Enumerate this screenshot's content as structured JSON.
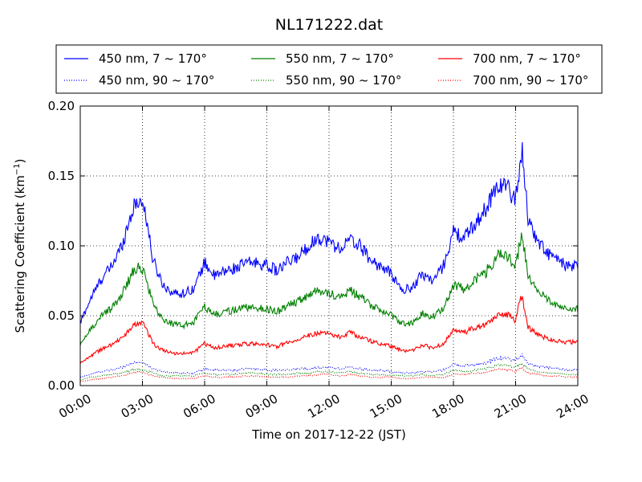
{
  "chart_data": {
    "type": "line",
    "title": "NL171222.dat",
    "xlabel": "Time on 2017-12-22 (JST)",
    "ylabel_main": "Scattering Coefficient (km",
    "ylabel_sup": "−1",
    "ylabel_end": ")",
    "xlim": [
      0,
      24
    ],
    "ylim": [
      0,
      0.2
    ],
    "x_ticks": [
      0,
      3,
      6,
      9,
      12,
      15,
      18,
      21,
      24
    ],
    "x_tick_labels": [
      "00:00",
      "03:00",
      "06:00",
      "09:00",
      "12:00",
      "15:00",
      "18:00",
      "21:00",
      "24:00"
    ],
    "y_ticks": [
      0,
      0.05,
      0.1,
      0.15,
      0.2
    ],
    "y_tick_labels": [
      "0.00",
      "0.05",
      "0.10",
      "0.15",
      "0.20"
    ],
    "grid": true,
    "legend_position": "top",
    "anchors_x": [
      0,
      0.5,
      1,
      1.5,
      2,
      2.5,
      2.8,
      3.1,
      3.5,
      4,
      4.5,
      5,
      5.5,
      6,
      6.5,
      7,
      7.5,
      8,
      8.5,
      9,
      9.5,
      10,
      10.5,
      11,
      11.5,
      12,
      12.5,
      13,
      13.5,
      14,
      14.5,
      15,
      15.5,
      16,
      16.5,
      17,
      17.5,
      18,
      18.5,
      19,
      19.5,
      20,
      20.3,
      20.7,
      21,
      21.3,
      21.6,
      22,
      22.5,
      23,
      23.5,
      24
    ],
    "series": [
      {
        "name": "450 nm, 7 ~ 170°",
        "color": "#0000ff",
        "style": "solid",
        "values": [
          0.045,
          0.062,
          0.076,
          0.085,
          0.1,
          0.125,
          0.133,
          0.128,
          0.09,
          0.072,
          0.066,
          0.066,
          0.07,
          0.088,
          0.078,
          0.082,
          0.084,
          0.088,
          0.088,
          0.086,
          0.082,
          0.088,
          0.092,
          0.1,
          0.106,
          0.103,
          0.098,
          0.104,
          0.1,
          0.09,
          0.085,
          0.08,
          0.068,
          0.07,
          0.08,
          0.075,
          0.085,
          0.11,
          0.105,
          0.115,
          0.125,
          0.14,
          0.145,
          0.14,
          0.132,
          0.17,
          0.12,
          0.105,
          0.095,
          0.09,
          0.085,
          0.085
        ]
      },
      {
        "name": "450 nm, 90 ~ 170°",
        "color": "#0000ff",
        "style": "dotted",
        "values": [
          0.006,
          0.008,
          0.01,
          0.011,
          0.013,
          0.016,
          0.017,
          0.016,
          0.012,
          0.01,
          0.009,
          0.009,
          0.009,
          0.012,
          0.011,
          0.011,
          0.011,
          0.012,
          0.012,
          0.011,
          0.011,
          0.011,
          0.012,
          0.012,
          0.013,
          0.013,
          0.012,
          0.013,
          0.012,
          0.011,
          0.011,
          0.01,
          0.009,
          0.009,
          0.01,
          0.01,
          0.011,
          0.015,
          0.014,
          0.015,
          0.016,
          0.019,
          0.02,
          0.019,
          0.018,
          0.022,
          0.016,
          0.014,
          0.013,
          0.012,
          0.011,
          0.011
        ]
      },
      {
        "name": "550 nm, 7 ~ 170°",
        "color": "#008000",
        "style": "solid",
        "values": [
          0.03,
          0.04,
          0.05,
          0.055,
          0.065,
          0.08,
          0.085,
          0.082,
          0.058,
          0.047,
          0.044,
          0.043,
          0.046,
          0.056,
          0.051,
          0.053,
          0.054,
          0.056,
          0.056,
          0.055,
          0.053,
          0.057,
          0.06,
          0.065,
          0.068,
          0.066,
          0.063,
          0.068,
          0.064,
          0.058,
          0.054,
          0.05,
          0.044,
          0.045,
          0.052,
          0.049,
          0.055,
          0.072,
          0.069,
          0.075,
          0.08,
          0.09,
          0.095,
          0.09,
          0.085,
          0.11,
          0.078,
          0.068,
          0.062,
          0.058,
          0.055,
          0.055
        ]
      },
      {
        "name": "550 nm, 90 ~ 170°",
        "color": "#008000",
        "style": "dotted",
        "values": [
          0.004,
          0.006,
          0.007,
          0.008,
          0.009,
          0.011,
          0.012,
          0.011,
          0.009,
          0.007,
          0.007,
          0.007,
          0.007,
          0.009,
          0.008,
          0.008,
          0.008,
          0.009,
          0.009,
          0.008,
          0.008,
          0.008,
          0.009,
          0.009,
          0.01,
          0.01,
          0.009,
          0.01,
          0.009,
          0.008,
          0.008,
          0.007,
          0.007,
          0.007,
          0.008,
          0.007,
          0.008,
          0.011,
          0.01,
          0.011,
          0.012,
          0.014,
          0.015,
          0.014,
          0.013,
          0.016,
          0.012,
          0.01,
          0.009,
          0.009,
          0.008,
          0.008
        ]
      },
      {
        "name": "700 nm, 7 ~ 170°",
        "color": "#ff0000",
        "style": "solid",
        "values": [
          0.016,
          0.021,
          0.026,
          0.029,
          0.034,
          0.042,
          0.045,
          0.043,
          0.03,
          0.025,
          0.023,
          0.023,
          0.024,
          0.03,
          0.027,
          0.028,
          0.029,
          0.03,
          0.03,
          0.029,
          0.028,
          0.031,
          0.033,
          0.036,
          0.038,
          0.037,
          0.035,
          0.038,
          0.035,
          0.032,
          0.03,
          0.028,
          0.025,
          0.025,
          0.029,
          0.027,
          0.03,
          0.039,
          0.038,
          0.041,
          0.043,
          0.048,
          0.052,
          0.05,
          0.047,
          0.065,
          0.042,
          0.037,
          0.034,
          0.032,
          0.031,
          0.031
        ]
      },
      {
        "name": "700 nm, 90 ~ 170°",
        "color": "#ff0000",
        "style": "dotted",
        "values": [
          0.003,
          0.004,
          0.005,
          0.006,
          0.007,
          0.009,
          0.01,
          0.009,
          0.007,
          0.006,
          0.005,
          0.005,
          0.005,
          0.007,
          0.006,
          0.006,
          0.006,
          0.007,
          0.007,
          0.006,
          0.006,
          0.006,
          0.007,
          0.007,
          0.008,
          0.008,
          0.007,
          0.008,
          0.007,
          0.006,
          0.006,
          0.006,
          0.005,
          0.005,
          0.006,
          0.006,
          0.006,
          0.008,
          0.008,
          0.009,
          0.009,
          0.011,
          0.012,
          0.011,
          0.01,
          0.013,
          0.009,
          0.008,
          0.007,
          0.007,
          0.006,
          0.006
        ]
      }
    ]
  }
}
